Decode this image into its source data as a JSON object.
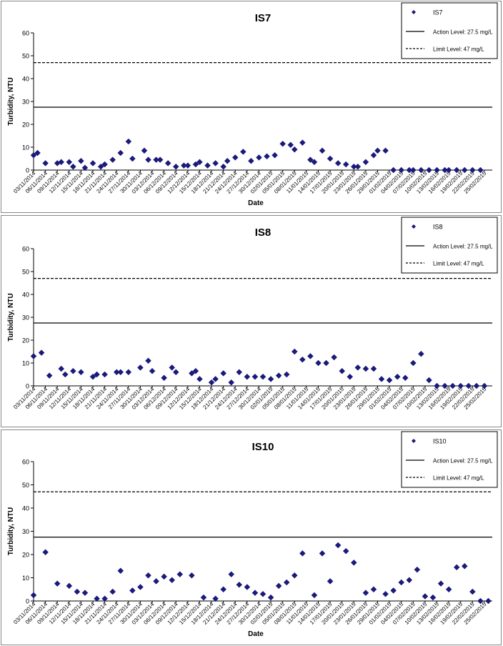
{
  "x_axis_dates": [
    "03/11/2014",
    "06/11/2014",
    "09/11/2014",
    "12/11/2014",
    "15/11/2014",
    "18/11/2014",
    "21/11/2014",
    "24/11/2014",
    "27/11/2014",
    "30/11/2014",
    "03/12/2014",
    "06/12/2014",
    "09/12/2014",
    "12/12/2014",
    "15/12/2014",
    "18/12/2014",
    "21/12/2014",
    "24/12/2014",
    "27/12/2014",
    "30/12/2014",
    "02/01/2015",
    "05/01/2015",
    "08/01/2015",
    "11/01/2015",
    "14/01/2015",
    "17/01/2015",
    "20/01/2015",
    "23/01/2015",
    "26/01/2015",
    "29/01/2015",
    "01/02/2015",
    "04/02/2015",
    "07/02/2015",
    "10/02/2015",
    "13/02/2015",
    "16/02/2015",
    "19/02/2015",
    "22/02/2015",
    "25/02/2015"
  ],
  "chart_data": [
    {
      "type": "scatter",
      "title": "IS7",
      "xlabel": "Date",
      "ylabel": "Turbidity, NTU",
      "ylim": [
        0,
        60
      ],
      "yticks": [
        0,
        10,
        20,
        30,
        40,
        50,
        60
      ],
      "xlim": [
        "03/11/2014",
        "27/02/2015"
      ],
      "legend_position": "top-right",
      "series": [
        {
          "name": "IS7",
          "marker": "diamond",
          "color": "#1a1a7a",
          "x": [
            "03/11/2014",
            "04/11/2014",
            "06/11/2014",
            "09/11/2014",
            "10/11/2014",
            "12/11/2014",
            "13/11/2014",
            "15/11/2014",
            "16/11/2014",
            "18/11/2014",
            "20/11/2014",
            "21/11/2014",
            "23/11/2014",
            "25/11/2014",
            "27/11/2014",
            "28/11/2014",
            "01/12/2014",
            "02/12/2014",
            "04/12/2014",
            "05/12/2014",
            "07/12/2014",
            "09/12/2014",
            "11/12/2014",
            "12/12/2014",
            "14/12/2014",
            "15/12/2014",
            "17/12/2014",
            "19/12/2014",
            "21/12/2014",
            "22/12/2014",
            "24/12/2014",
            "26/12/2014",
            "28/12/2014",
            "30/12/2014",
            "01/01/2015",
            "03/01/2015",
            "05/01/2015",
            "07/01/2015",
            "08/01/2015",
            "10/01/2015",
            "12/01/2015",
            "13/01/2015",
            "15/01/2015",
            "17/01/2015",
            "19/01/2015",
            "21/01/2015",
            "23/01/2015",
            "24/01/2015",
            "26/01/2015",
            "28/01/2015",
            "29/01/2015",
            "31/01/2015",
            "02/02/2015",
            "04/02/2015",
            "06/02/2015",
            "07/02/2015",
            "09/02/2015",
            "11/02/2015",
            "13/02/2015",
            "15/02/2015",
            "16/02/2015",
            "18/02/2015",
            "20/02/2015",
            "22/02/2015",
            "24/02/2015"
          ],
          "y": [
            6.5,
            7.5,
            3,
            3,
            3.5,
            3.5,
            1.5,
            4,
            1,
            3,
            1.5,
            2.5,
            4.5,
            7.5,
            12.5,
            5,
            8.5,
            4.5,
            4.5,
            4.5,
            3,
            1.5,
            2,
            2,
            2.5,
            3.5,
            2,
            3,
            1.5,
            4,
            5.5,
            8,
            4,
            5.5,
            6,
            6.5,
            11.5,
            11,
            9,
            12,
            4.5,
            3.5,
            8.5,
            5,
            3,
            2.5,
            1.5,
            1.5,
            3.5,
            6.5,
            8.5,
            8.5,
            0,
            0,
            0,
            0,
            0,
            0,
            0,
            0,
            0,
            0,
            0,
            0,
            0
          ]
        }
      ]
    },
    {
      "type": "scatter",
      "title": "IS8",
      "xlabel": "",
      "ylabel": "Turbidity, NTU",
      "ylim": [
        0,
        60
      ],
      "yticks": [
        0,
        10,
        20,
        30,
        40,
        50,
        60
      ],
      "xlim": [
        "03/11/2014",
        "27/02/2015"
      ],
      "legend_position": "top-right",
      "series": [
        {
          "name": "IS8",
          "marker": "diamond",
          "color": "#1a1a7a",
          "x": [
            "03/11/2014",
            "05/11/2014",
            "07/11/2014",
            "10/11/2014",
            "11/11/2014",
            "13/11/2014",
            "15/11/2014",
            "18/11/2014",
            "19/11/2014",
            "21/11/2014",
            "24/11/2014",
            "25/11/2014",
            "27/11/2014",
            "30/11/2014",
            "02/12/2014",
            "03/12/2014",
            "06/12/2014",
            "08/12/2014",
            "09/12/2014",
            "13/12/2014",
            "14/12/2014",
            "15/12/2014",
            "18/12/2014",
            "19/12/2014",
            "21/12/2014",
            "23/12/2014",
            "25/12/2014",
            "27/12/2014",
            "29/12/2014",
            "31/12/2014",
            "02/01/2015",
            "04/01/2015",
            "06/01/2015",
            "08/01/2015",
            "10/01/2015",
            "12/01/2015",
            "14/01/2015",
            "16/01/2015",
            "18/01/2015",
            "20/01/2015",
            "22/01/2015",
            "24/01/2015",
            "26/01/2015",
            "28/01/2015",
            "30/01/2015",
            "01/02/2015",
            "03/02/2015",
            "05/02/2015",
            "07/02/2015",
            "09/02/2015",
            "11/02/2015",
            "13/02/2015",
            "15/02/2015",
            "17/02/2015",
            "19/02/2015",
            "21/02/2015",
            "23/02/2015",
            "25/02/2015"
          ],
          "y": [
            13,
            14.5,
            4.5,
            7.5,
            5,
            6.5,
            6,
            4,
            5,
            5,
            6,
            6,
            6,
            8,
            11,
            6.5,
            3.5,
            8,
            6,
            5.5,
            6.5,
            3,
            1.5,
            3,
            5.5,
            1.5,
            6,
            4,
            4,
            4,
            3,
            4.5,
            5,
            15,
            11.5,
            13,
            10,
            10,
            12.5,
            6.5,
            4,
            8,
            7.5,
            7.5,
            3,
            2.5,
            4,
            3.5,
            10,
            14,
            2.5,
            0,
            0,
            0,
            0,
            0,
            0,
            0
          ]
        }
      ]
    },
    {
      "type": "scatter",
      "title": "IS10",
      "xlabel": "Date",
      "ylabel": "Turbidity, NTU",
      "ylim": [
        0,
        60
      ],
      "yticks": [
        0,
        10,
        20,
        30,
        40,
        50,
        60
      ],
      "xlim": [
        "03/11/2014",
        "27/02/2015"
      ],
      "legend_position": "top-right",
      "series": [
        {
          "name": "IS10",
          "marker": "diamond",
          "color": "#1a1a7a",
          "x": [
            "03/11/2014",
            "06/11/2014",
            "09/11/2014",
            "12/11/2014",
            "14/11/2014",
            "16/11/2014",
            "19/11/2014",
            "21/11/2014",
            "23/11/2014",
            "25/11/2014",
            "28/11/2014",
            "30/11/2014",
            "02/12/2014",
            "04/12/2014",
            "06/12/2014",
            "08/12/2014",
            "10/12/2014",
            "13/12/2014",
            "16/12/2014",
            "19/12/2014",
            "21/12/2014",
            "23/12/2014",
            "25/12/2014",
            "27/12/2014",
            "29/12/2014",
            "31/12/2014",
            "02/01/2015",
            "04/01/2015",
            "06/01/2015",
            "08/01/2015",
            "10/01/2015",
            "13/01/2015",
            "15/01/2015",
            "17/01/2015",
            "19/01/2015",
            "21/01/2015",
            "23/01/2015",
            "26/01/2015",
            "28/01/2015",
            "31/01/2015",
            "02/02/2015",
            "04/02/2015",
            "06/02/2015",
            "08/02/2015",
            "10/02/2015",
            "12/02/2015",
            "14/02/2015",
            "16/02/2015",
            "18/02/2015",
            "20/02/2015",
            "22/02/2015",
            "24/02/2015",
            "26/02/2015"
          ],
          "y": [
            2.5,
            21,
            7.5,
            6.5,
            4,
            3.5,
            1,
            1,
            4,
            13,
            4.5,
            6,
            11,
            8.5,
            10.5,
            9,
            11.5,
            11,
            1.5,
            1,
            5,
            11.5,
            7,
            6,
            3.5,
            3,
            1.5,
            6.5,
            8,
            11,
            20.5,
            2.5,
            20.5,
            8.5,
            24,
            21.5,
            16.5,
            3.5,
            5,
            3,
            4.5,
            8,
            9,
            13.5,
            2,
            1.5,
            7.5,
            5,
            14.5,
            15,
            4,
            0,
            0
          ]
        }
      ]
    }
  ],
  "reference_lines": [
    {
      "name": "Action Level: 27.5 mg/L",
      "value": 27.5,
      "style": "solid",
      "color": "#000000"
    },
    {
      "name": "Limit Level: 47 mg/L",
      "value": 47,
      "style": "dashed",
      "color": "#000000"
    }
  ],
  "colors": {
    "marker": "#1a1a7a",
    "frame": "#888888",
    "background": "#ffffff"
  }
}
